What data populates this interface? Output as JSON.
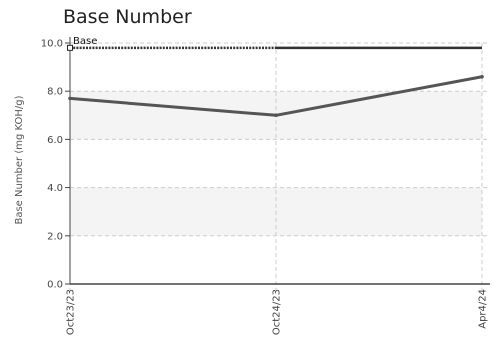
{
  "chart_data": {
    "type": "line",
    "title": "Base Number",
    "xlabel": "",
    "ylabel": "Base Number (mg KOH/g)",
    "categories": [
      "Oct23/23",
      "Oct24/23",
      "Apr4/24"
    ],
    "yticks": [
      "0.0",
      "2.0",
      "4.0",
      "6.0",
      "8.0",
      "10.0"
    ],
    "ylim": [
      0,
      10
    ],
    "grid": true,
    "alternating_bands": true,
    "series": [
      {
        "name": "",
        "values": [
          7.7,
          7.0,
          8.6
        ],
        "color": "#555555"
      }
    ],
    "limit_line": {
      "label": "Base",
      "value": 9.8,
      "color": "#333333"
    },
    "colors": {
      "band": "#f4f4f4",
      "grid": "#cccccc",
      "axis": "#444444"
    }
  }
}
